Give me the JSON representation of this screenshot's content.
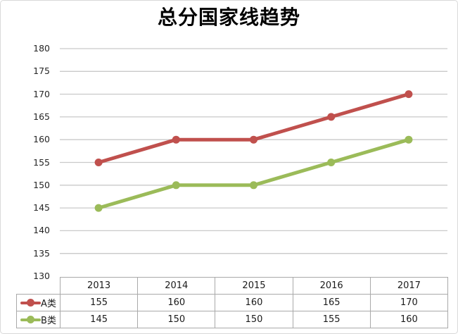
{
  "chart_data": {
    "type": "line",
    "title": "总分国家线趋势",
    "categories": [
      "2013",
      "2014",
      "2015",
      "2016",
      "2017"
    ],
    "series": [
      {
        "name": "A类",
        "color": "#C0504D",
        "values": [
          155,
          160,
          160,
          165,
          170
        ]
      },
      {
        "name": "B类",
        "color": "#9BBB59",
        "values": [
          145,
          150,
          150,
          155,
          160
        ]
      }
    ],
    "ylim": [
      130,
      180
    ],
    "ytick_step": 5,
    "yticks": [
      180,
      175,
      170,
      165,
      160,
      155,
      150,
      145,
      140,
      135,
      130
    ],
    "grid": "horizontal",
    "gridline_color": "#C9C9C9",
    "table_border_color": "#A9A9A9",
    "legend_position": "table-left"
  }
}
